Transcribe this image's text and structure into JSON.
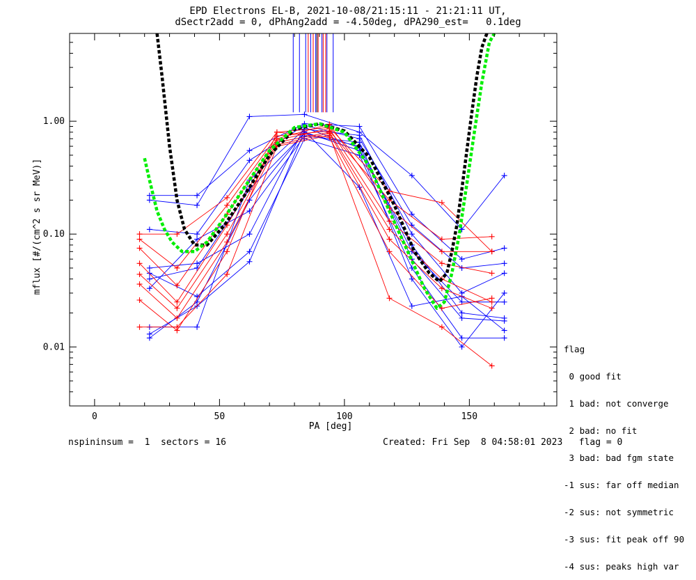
{
  "title_line1": "EPD Electrons EL-B, 2021-10-08/21:15:11 - 21:21:11 UT,",
  "title_line2": "dSectr2add = 0, dPhAng2add = -4.50deg, dPA290_est=   0.1deg",
  "footer_left": "nspininsum =  1  sectors = 16",
  "footer_right": "Created: Fri Sep  8 04:58:01 2023   flag = 0",
  "legend": {
    "title": "flag",
    "items": [
      " 0 good fit",
      " 1 bad: not converge",
      " 2 bad: no fit",
      " 3 bad: bad fgm state",
      "-1 sus: far off median",
      "-2 sus: not symmetric",
      "-3 sus: fit peak off 90",
      "-4 sus: peaks high var"
    ]
  },
  "chart_data": {
    "type": "line",
    "xlabel": "PA [deg]",
    "ylabel": "mflux [#/(cm^2 s sr MeV)]",
    "xlim": [
      -10,
      185
    ],
    "ylim": [
      0.003,
      6.0
    ],
    "yscale": "log",
    "xticks": [
      0,
      50,
      100,
      150
    ],
    "xtick_labels": [
      "0",
      "50",
      "100",
      "150"
    ],
    "yticks": [
      0.01,
      0.1,
      1.0
    ],
    "ytick_labels": [
      "0.01",
      "0.10",
      "1.00"
    ],
    "colors": {
      "blue": "#0000ff",
      "red": "#ff0000",
      "black": "#000000",
      "green": "#00ee00"
    },
    "series": [
      {
        "color": "blue",
        "x": [
          22,
          41,
          62,
          84,
          106,
          127,
          147,
          164
        ],
        "y": [
          0.2,
          0.18,
          1.1,
          1.15,
          0.8,
          0.33,
          0.11,
          0.33
        ]
      },
      {
        "color": "blue",
        "x": [
          22,
          41,
          62,
          84,
          106,
          127,
          147,
          164
        ],
        "y": [
          0.22,
          0.22,
          0.55,
          0.95,
          0.9,
          0.15,
          0.06,
          0.075
        ]
      },
      {
        "color": "blue",
        "x": [
          22,
          41,
          62,
          84,
          106,
          127,
          147,
          164
        ],
        "y": [
          0.11,
          0.1,
          0.45,
          0.92,
          0.7,
          0.12,
          0.05,
          0.055
        ]
      },
      {
        "color": "blue",
        "x": [
          22,
          41,
          62,
          84,
          106,
          127,
          147,
          164
        ],
        "y": [
          0.015,
          0.015,
          0.3,
          0.85,
          0.75,
          0.1,
          0.03,
          0.045
        ]
      },
      {
        "color": "blue",
        "x": [
          22,
          41,
          62,
          84,
          106,
          127,
          147,
          164
        ],
        "y": [
          0.012,
          0.025,
          0.2,
          0.8,
          0.55,
          0.08,
          0.02,
          0.018
        ]
      },
      {
        "color": "blue",
        "x": [
          22,
          41,
          62,
          84,
          106,
          127,
          147,
          164
        ],
        "y": [
          0.04,
          0.05,
          0.25,
          0.78,
          0.6,
          0.07,
          0.025,
          0.025
        ]
      },
      {
        "color": "blue",
        "x": [
          22,
          41,
          62,
          84,
          106,
          127,
          147,
          164
        ],
        "y": [
          0.033,
          0.09,
          0.16,
          0.74,
          0.65,
          0.06,
          0.018,
          0.017
        ]
      },
      {
        "color": "blue",
        "x": [
          22,
          41,
          62,
          84,
          106,
          127,
          147,
          164
        ],
        "y": [
          0.045,
          0.028,
          0.07,
          0.7,
          0.5,
          0.05,
          0.012,
          0.012
        ]
      },
      {
        "color": "blue",
        "x": [
          22,
          41,
          62,
          84,
          106,
          127,
          147,
          164
        ],
        "y": [
          0.013,
          0.023,
          0.057,
          0.82,
          0.26,
          0.023,
          0.028,
          0.014
        ]
      },
      {
        "color": "blue",
        "x": [
          22,
          41,
          62,
          84,
          106,
          127,
          147,
          164
        ],
        "y": [
          0.05,
          0.055,
          0.1,
          0.88,
          0.58,
          0.04,
          0.01,
          0.03
        ]
      },
      {
        "color": "red",
        "x": [
          18,
          33,
          53,
          73,
          94,
          118,
          139,
          159
        ],
        "y": [
          0.1,
          0.1,
          0.21,
          0.8,
          0.88,
          0.24,
          0.19,
          0.07
        ]
      },
      {
        "color": "red",
        "x": [
          18,
          33,
          53,
          73,
          94,
          118,
          139,
          159
        ],
        "y": [
          0.09,
          0.05,
          0.18,
          0.74,
          0.82,
          0.2,
          0.09,
          0.095
        ]
      },
      {
        "color": "red",
        "x": [
          18,
          33,
          53,
          73,
          94,
          118,
          139,
          159
        ],
        "y": [
          0.075,
          0.035,
          0.15,
          0.7,
          0.94,
          0.17,
          0.07,
          0.07
        ]
      },
      {
        "color": "red",
        "x": [
          18,
          33,
          53,
          73,
          94,
          118,
          139,
          159
        ],
        "y": [
          0.055,
          0.025,
          0.12,
          0.68,
          0.86,
          0.13,
          0.055,
          0.045
        ]
      },
      {
        "color": "red",
        "x": [
          18,
          33,
          53,
          73,
          94,
          118,
          139,
          159
        ],
        "y": [
          0.044,
          0.022,
          0.1,
          0.65,
          0.8,
          0.11,
          0.04,
          0.025
        ]
      },
      {
        "color": "red",
        "x": [
          18,
          33,
          53,
          73,
          94,
          118,
          139,
          159
        ],
        "y": [
          0.036,
          0.018,
          0.085,
          0.62,
          0.78,
          0.09,
          0.033,
          0.022
        ]
      },
      {
        "color": "red",
        "x": [
          18,
          33,
          53,
          73,
          94,
          118,
          139,
          159
        ],
        "y": [
          0.026,
          0.014,
          0.07,
          0.8,
          0.72,
          0.07,
          0.022,
          0.027
        ]
      },
      {
        "color": "red",
        "x": [
          18,
          33,
          53,
          73,
          94,
          118,
          139,
          159
        ],
        "y": [
          0.015,
          0.015,
          0.044,
          0.6,
          0.75,
          0.027,
          0.015,
          0.0068
        ]
      }
    ],
    "fits": [
      {
        "color": "black",
        "x": [
          25,
          27,
          30,
          33,
          36,
          40,
          45,
          52,
          60,
          70,
          80,
          90,
          100,
          110,
          120,
          128,
          134,
          138,
          141,
          143,
          145,
          147,
          149,
          151,
          153,
          155,
          157
        ],
        "y": [
          6.0,
          2.5,
          0.6,
          0.2,
          0.11,
          0.08,
          0.08,
          0.12,
          0.22,
          0.5,
          0.85,
          0.95,
          0.82,
          0.48,
          0.18,
          0.07,
          0.045,
          0.038,
          0.045,
          0.07,
          0.12,
          0.25,
          0.55,
          1.2,
          2.5,
          4.5,
          6.0
        ]
      },
      {
        "color": "green",
        "x": [
          20,
          22,
          25,
          28,
          31,
          35,
          40,
          45,
          52,
          60,
          70,
          80,
          90,
          100,
          110,
          118,
          126,
          132,
          137,
          140,
          143,
          146,
          149,
          152,
          155,
          158,
          160
        ],
        "y": [
          0.47,
          0.3,
          0.16,
          0.11,
          0.085,
          0.07,
          0.07,
          0.085,
          0.14,
          0.26,
          0.55,
          0.88,
          0.95,
          0.8,
          0.4,
          0.16,
          0.065,
          0.033,
          0.022,
          0.025,
          0.045,
          0.1,
          0.28,
          0.8,
          2.2,
          5.0,
          6.0
        ]
      }
    ],
    "vlines": [
      {
        "color": "blue",
        "x": [
          79.5,
          82,
          84.5,
          86.5,
          88.5,
          91,
          93,
          95.5
        ]
      },
      {
        "color": "red",
        "x": [
          85.5,
          87.5,
          89.5,
          91.5,
          92.5
        ]
      },
      {
        "color": "black",
        "x": [
          89
        ]
      }
    ]
  }
}
